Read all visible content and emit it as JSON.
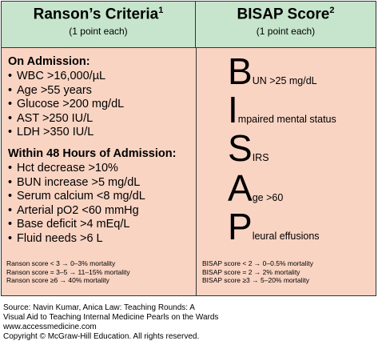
{
  "ranson": {
    "title": "Ranson’s Criteria",
    "title_sup": "1",
    "subtitle": "(1 point each)",
    "admission_heading": "On Admission:",
    "admission_items": [
      "WBC >16,000/µL",
      "Age >55 years",
      "Glucose >200 mg/dL",
      "AST >250 IU/L",
      "LDH >350 IU/L"
    ],
    "within48_heading": "Within 48 Hours of Admission:",
    "within48_items": [
      "Hct decrease >10%",
      "BUN increase >5 mg/dL",
      "Serum calcium <8 mg/dL",
      "Arterial pO2 <60 mmHg",
      "Base deficit >4 mEq/L",
      "Fluid needs >6 L"
    ],
    "bullet_char": "•",
    "score_lines": [
      "Ranson score < 3 → 0–3% mortality",
      "Ranson score = 3–5 → 11–15% mortality",
      "Ranson score ≥6 → 40% mortality"
    ]
  },
  "bisap": {
    "title": "BISAP Score",
    "title_sup": "2",
    "subtitle": "(1 point each)",
    "rows": [
      {
        "letter": "B",
        "rest": "UN >25 mg/dL"
      },
      {
        "letter": "I",
        "rest": "mpaired mental status"
      },
      {
        "letter": "S",
        "rest": "IRS"
      },
      {
        "letter": "A",
        "rest": "ge >60"
      },
      {
        "letter": "P",
        "rest": "leural effusions"
      }
    ],
    "score_lines": [
      "BISAP score < 2 → 0–0.5% mortality",
      "BISAP score = 2 → 2% mortality",
      "BISAP score ≥3 → 5–20% mortality"
    ]
  },
  "footer": [
    "Source: Navin Kumar, Anica Law: Teaching Rounds: A",
    "Visual Aid to Teaching Internal Medicine Pearls on the Wards",
    "www.accessmedicine.com",
    "Copyright © McGraw-Hill Education. All rights reserved."
  ],
  "colors": {
    "header_bg": "#c6e5cc",
    "body_bg": "#f9d4c3",
    "border": "#333333"
  }
}
